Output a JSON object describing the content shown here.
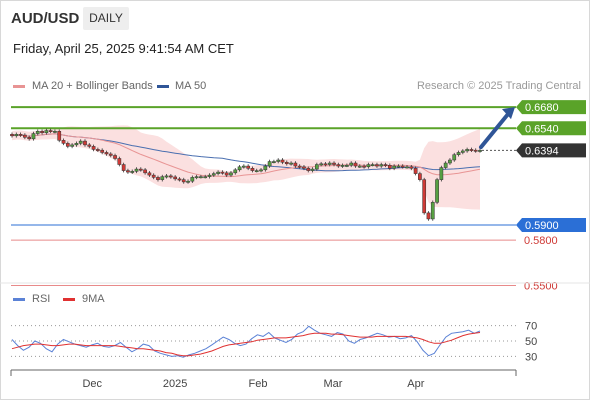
{
  "header": {
    "symbol": "AUD/USD",
    "timeframe": "DAILY",
    "datetime": "Friday, April 25, 2025 9:41:54 AM CET"
  },
  "legend": {
    "ma20_label": "MA 20 + Bollinger Bands",
    "ma50_label": "MA 50",
    "credit": "Research © 2025 Trading Central",
    "rsi_label": "RSI",
    "ma9_label": "9MA"
  },
  "colors": {
    "up_candle": "#57a042",
    "down_candle": "#cf3a36",
    "ma20": "#e89494",
    "bollinger_fill": "#fbe0e0",
    "ma50": "#4a6fb0",
    "resistance": "#5aa329",
    "support": "#2b6fd6",
    "hline_red": "#e88a8a",
    "current_price_bg": "#333333",
    "rsi": "#5b82d6",
    "rsi_ma": "#e03131",
    "arrow": "#2f6fb3"
  },
  "chart_data": [
    {
      "type": "candlestick",
      "title": "AUD/USD DAILY",
      "x_tick_labels": [
        "Dec",
        "2025",
        "Feb",
        "Mar",
        "Apr"
      ],
      "x_range": [
        "2024-11-01",
        "2025-04-25"
      ],
      "ylim": [
        0.547,
        0.676
      ],
      "current_price": "0.6394",
      "annotation": "up arrow pointing to 0.6680 resistance",
      "levels": [
        {
          "label": "0.6680",
          "value": 0.668,
          "kind": "resistance",
          "style": "tag"
        },
        {
          "label": "0.6540",
          "value": 0.654,
          "kind": "resistance",
          "style": "tag"
        },
        {
          "label": "0.5900",
          "value": 0.59,
          "kind": "support",
          "style": "tag"
        },
        {
          "label": "0.5800",
          "value": 0.58,
          "kind": "level",
          "style": "text"
        },
        {
          "label": "0.5500",
          "value": 0.55,
          "kind": "level",
          "style": "text"
        }
      ],
      "ohlc_close_series": [
        0.649,
        0.65,
        0.6495,
        0.648,
        0.647,
        0.6505,
        0.652,
        0.651,
        0.6525,
        0.652,
        0.652,
        0.646,
        0.644,
        0.642,
        0.643,
        0.644,
        0.6455,
        0.643,
        0.642,
        0.64,
        0.6395,
        0.638,
        0.637,
        0.636,
        0.634,
        0.63,
        0.626,
        0.625,
        0.6255,
        0.627,
        0.6265,
        0.6245,
        0.623,
        0.6215,
        0.62,
        0.622,
        0.6225,
        0.6218,
        0.6205,
        0.62,
        0.6185,
        0.619,
        0.6215,
        0.622,
        0.622,
        0.622,
        0.623,
        0.624,
        0.625,
        0.6245,
        0.623,
        0.6245,
        0.6265,
        0.6285,
        0.629,
        0.6275,
        0.626,
        0.626,
        0.6265,
        0.629,
        0.632,
        0.632,
        0.633,
        0.6315,
        0.6305,
        0.631,
        0.629,
        0.6285,
        0.6275,
        0.626,
        0.627,
        0.63,
        0.6305,
        0.63,
        0.631,
        0.63,
        0.629,
        0.6295,
        0.6295,
        0.631,
        0.629,
        0.629,
        0.6285,
        0.63,
        0.63,
        0.629,
        0.63,
        0.6295,
        0.6275,
        0.629,
        0.629,
        0.6285,
        0.6285,
        0.6275,
        0.624,
        0.62,
        0.598,
        0.594,
        0.605,
        0.62,
        0.628,
        0.631,
        0.633,
        0.6365,
        0.638,
        0.639,
        0.64,
        0.6395,
        0.639,
        0.6394
      ]
    },
    {
      "type": "line",
      "title": "RSI",
      "y_tick_labels": [
        "70",
        "50",
        "30"
      ],
      "ylim": [
        15,
        85
      ],
      "guide_levels": [
        70,
        50,
        30
      ],
      "series": [
        {
          "name": "RSI",
          "values": [
            52,
            44,
            38,
            42,
            50,
            47,
            40,
            36,
            46,
            52,
            49,
            46,
            44,
            42,
            45,
            47,
            43,
            42,
            44,
            48,
            42,
            36,
            40,
            46,
            44,
            37,
            34,
            32,
            30,
            31,
            29,
            32,
            34,
            37,
            40,
            45,
            50,
            55,
            52,
            47,
            44,
            46,
            53,
            58,
            56,
            61,
            54,
            51,
            48,
            52,
            59,
            62,
            69,
            64,
            60,
            58,
            56,
            61,
            59,
            50,
            47,
            52,
            54,
            57,
            60,
            58,
            55,
            56,
            53,
            54,
            57,
            49,
            38,
            31,
            34,
            45,
            55,
            60,
            61,
            62,
            64,
            60,
            63
          ]
        },
        {
          "name": "9MA",
          "values": [
            40,
            42,
            44,
            45,
            46,
            46,
            45,
            44,
            44,
            45,
            46,
            46,
            45,
            44,
            44,
            44,
            44,
            44,
            44,
            43,
            42,
            41,
            40,
            40,
            39,
            38,
            37,
            35,
            34,
            32,
            31,
            31,
            32,
            33,
            35,
            37,
            40,
            43,
            45,
            46,
            47,
            48,
            49,
            51,
            52,
            53,
            54,
            54,
            54,
            55,
            56,
            57,
            59,
            60,
            60,
            60,
            59,
            59,
            58,
            57,
            56,
            55,
            55,
            55,
            56,
            56,
            56,
            56,
            56,
            56,
            55,
            54,
            52,
            49,
            47,
            47,
            49,
            51,
            54,
            57,
            59,
            60,
            61
          ]
        }
      ]
    }
  ]
}
